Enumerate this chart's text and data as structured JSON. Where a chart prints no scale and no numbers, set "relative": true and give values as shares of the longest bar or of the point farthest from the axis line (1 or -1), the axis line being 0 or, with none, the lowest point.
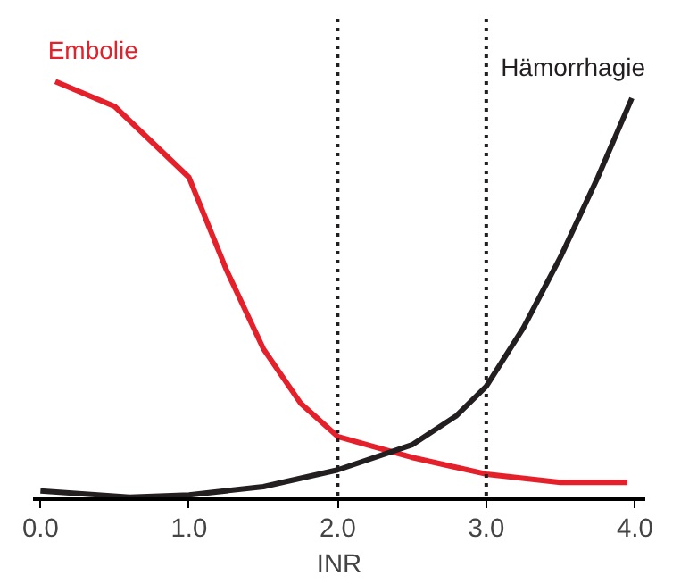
{
  "chart_data": {
    "type": "line",
    "relative": true,
    "xlabel": "INR",
    "xlim": [
      -0.05,
      4.07
    ],
    "xticks": [
      {
        "value": 0,
        "label": "0.0"
      },
      {
        "value": 1,
        "label": "1.0"
      },
      {
        "value": 2,
        "label": "2.0"
      },
      {
        "value": 3,
        "label": "3.0"
      },
      {
        "value": 4,
        "label": "4.0"
      }
    ],
    "grid": false,
    "legend": false,
    "marker": "none",
    "line_style": "solid",
    "ref_lines": [
      {
        "axis": "x",
        "value": 2.0,
        "color": "#231f20",
        "line_style": "dotted"
      },
      {
        "axis": "x",
        "value": 3.0,
        "color": "#231f20",
        "line_style": "dotted"
      }
    ],
    "series": [
      {
        "name": "Embolie",
        "color": "#e4202a",
        "x": [
          0.1,
          0.5,
          1.0,
          1.25,
          1.5,
          1.75,
          2.0,
          2.5,
          3.0,
          3.5,
          3.95
        ],
        "values": [
          1.0,
          0.94,
          0.77,
          0.55,
          0.36,
          0.23,
          0.15,
          0.1,
          0.06,
          0.04,
          0.04
        ]
      },
      {
        "name": "Hämorrhagie",
        "color": "#231f20",
        "x": [
          0.0,
          0.6,
          1.0,
          1.5,
          2.0,
          2.5,
          2.8,
          3.0,
          3.25,
          3.5,
          3.75,
          3.98
        ],
        "values": [
          0.02,
          0.005,
          0.01,
          0.03,
          0.07,
          0.13,
          0.2,
          0.27,
          0.41,
          0.58,
          0.77,
          0.96
        ]
      }
    ]
  }
}
